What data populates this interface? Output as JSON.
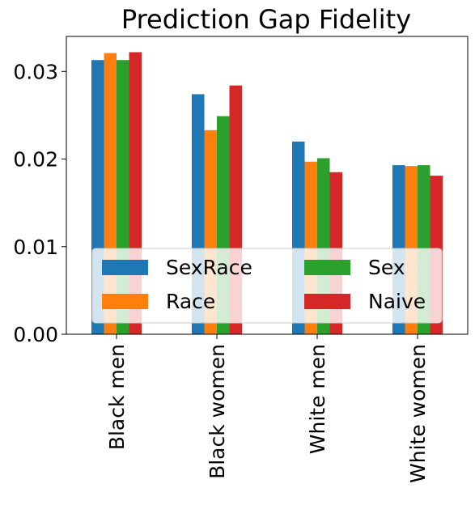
{
  "chart_data": {
    "type": "bar",
    "title": "Prediction Gap Fidelity",
    "xlabel": "",
    "ylabel": "",
    "categories": [
      "Black men",
      "Black women",
      "White men",
      "White women"
    ],
    "series": [
      {
        "name": "SexRace",
        "color": "#1f77b4",
        "values": [
          0.0313,
          0.0274,
          0.022,
          0.0193
        ]
      },
      {
        "name": "Race",
        "color": "#ff7f0e",
        "values": [
          0.0321,
          0.0233,
          0.0197,
          0.0192
        ]
      },
      {
        "name": "Sex",
        "color": "#2ca02c",
        "values": [
          0.0313,
          0.0249,
          0.0201,
          0.0193
        ]
      },
      {
        "name": "Naive",
        "color": "#d62728",
        "values": [
          0.0322,
          0.0284,
          0.0185,
          0.0181
        ]
      }
    ],
    "ylim": [
      0,
      0.034
    ],
    "yticks": [
      0.0,
      0.01,
      0.02,
      0.03
    ],
    "ytick_labels": [
      "0.00",
      "0.01",
      "0.02",
      "0.03"
    ],
    "grid": false,
    "legend_position": "lower center",
    "legend_columns": 2
  }
}
